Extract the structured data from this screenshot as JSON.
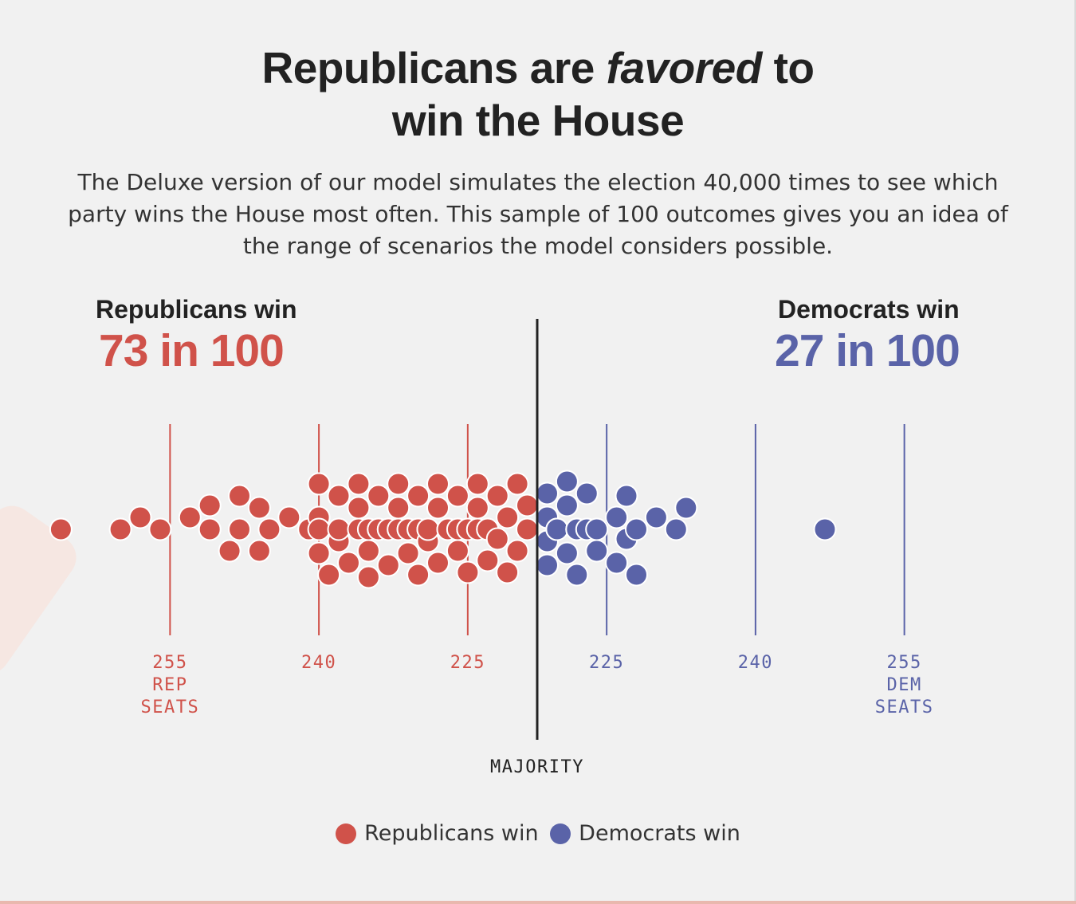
{
  "title": {
    "line1_before": "Republicans are",
    "line1_em": "favored",
    "line1_after": "to",
    "line2": "win the House"
  },
  "subtitle": "The Deluxe version of our model simulates the election 40,000 times to see which party wins the House most often. This sample of 100 outcomes gives you an idea of the range of scenarios the model considers possible.",
  "republicans": {
    "label": "Republicans win",
    "count": "73 in 100",
    "color": "#d0524a"
  },
  "democrats": {
    "label": "Democrats win",
    "count": "27 in 100",
    "color": "#5a63a8"
  },
  "majority_label": "MAJORITY",
  "legend": {
    "rep": "Republicans win",
    "dem": "Democrats win"
  },
  "chart_data": {
    "type": "scatter",
    "majority_seats": 218,
    "ticks": {
      "rep": [
        {
          "seats": 255,
          "lines": [
            "255",
            "REP",
            "SEATS"
          ]
        },
        {
          "seats": 240,
          "lines": [
            "240"
          ]
        },
        {
          "seats": 225,
          "lines": [
            "225"
          ]
        }
      ],
      "dem": [
        {
          "seats": 225,
          "lines": [
            "225"
          ]
        },
        {
          "seats": 240,
          "lines": [
            "240"
          ]
        },
        {
          "seats": 255,
          "lines": [
            "255",
            "DEM",
            "SEATS"
          ]
        }
      ]
    },
    "series": [
      {
        "key": "rep",
        "name": "Republicans win",
        "values": [
          266,
          260,
          258,
          256,
          253,
          251,
          251,
          249,
          248,
          248,
          246,
          246,
          245,
          243,
          241,
          240,
          240,
          240,
          240,
          239,
          238,
          238,
          238,
          237,
          236,
          236,
          236,
          235,
          235,
          235,
          234,
          234,
          234,
          233,
          233,
          233,
          232,
          232,
          232,
          231,
          231,
          231,
          230,
          230,
          230,
          229,
          229,
          229,
          228,
          228,
          228,
          227,
          227,
          226,
          226,
          226,
          225,
          225,
          225,
          224,
          224,
          224,
          223,
          223,
          223,
          222,
          222,
          221,
          221,
          220,
          220,
          219,
          219
        ]
      },
      {
        "key": "dem",
        "name": "Democrats win",
        "values": [
          219,
          219,
          219,
          219,
          220,
          220,
          220,
          221,
          221,
          221,
          222,
          222,
          222,
          223,
          223,
          224,
          224,
          226,
          226,
          227,
          227,
          228,
          228,
          230,
          232,
          233,
          247
        ]
      }
    ]
  }
}
